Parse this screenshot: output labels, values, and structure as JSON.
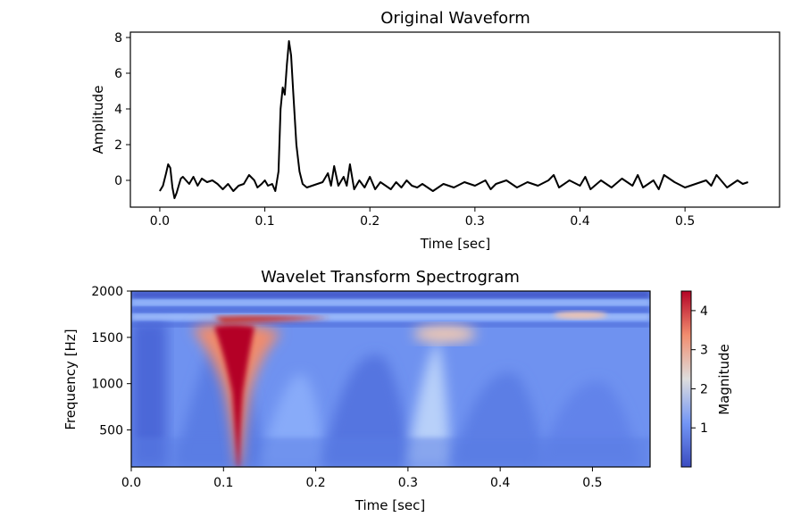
{
  "chart_data": [
    {
      "type": "line",
      "title": "Original Waveform",
      "xlabel": "Time [sec]",
      "ylabel": "Amplitude",
      "xlim": [
        -0.028,
        0.59
      ],
      "ylim": [
        -1.5,
        8.3
      ],
      "xticks": [
        0.0,
        0.1,
        0.2,
        0.3,
        0.4,
        0.5
      ],
      "xtick_labels": [
        "0.0",
        "0.1",
        "0.2",
        "0.3",
        "0.4",
        "0.5"
      ],
      "yticks": [
        0,
        2,
        4,
        6,
        8
      ],
      "ytick_labels": [
        "0",
        "2",
        "4",
        "6",
        "8"
      ],
      "grid": false,
      "line_color": "#000000",
      "series": [
        {
          "x": [
            0.0,
            0.003,
            0.006,
            0.008,
            0.01,
            0.012,
            0.014,
            0.016,
            0.018,
            0.02,
            0.022,
            0.025,
            0.028,
            0.032,
            0.036,
            0.04,
            0.045,
            0.05,
            0.055,
            0.06,
            0.065,
            0.07,
            0.075,
            0.08,
            0.085,
            0.09,
            0.093,
            0.097,
            0.1,
            0.103,
            0.107,
            0.11,
            0.113,
            0.115,
            0.117,
            0.119,
            0.121,
            0.123,
            0.125,
            0.127,
            0.13,
            0.133,
            0.136,
            0.14,
            0.145,
            0.15,
            0.155,
            0.16,
            0.163,
            0.166,
            0.17,
            0.175,
            0.178,
            0.181,
            0.185,
            0.19,
            0.195,
            0.2,
            0.205,
            0.21,
            0.215,
            0.22,
            0.225,
            0.23,
            0.235,
            0.24,
            0.245,
            0.25,
            0.26,
            0.27,
            0.28,
            0.29,
            0.3,
            0.31,
            0.315,
            0.32,
            0.33,
            0.34,
            0.35,
            0.36,
            0.37,
            0.375,
            0.38,
            0.39,
            0.4,
            0.405,
            0.41,
            0.42,
            0.43,
            0.44,
            0.45,
            0.455,
            0.46,
            0.47,
            0.475,
            0.48,
            0.49,
            0.5,
            0.51,
            0.52,
            0.525,
            0.53,
            0.54,
            0.55,
            0.555,
            0.56
          ],
          "y": [
            -0.6,
            -0.3,
            0.4,
            0.9,
            0.7,
            -0.4,
            -1.0,
            -0.7,
            -0.3,
            0.1,
            0.2,
            0.0,
            -0.2,
            0.2,
            -0.3,
            0.1,
            -0.1,
            0.0,
            -0.2,
            -0.5,
            -0.2,
            -0.6,
            -0.3,
            -0.2,
            0.3,
            0.0,
            -0.4,
            -0.2,
            0.0,
            -0.3,
            -0.2,
            -0.6,
            0.5,
            4.0,
            5.2,
            4.8,
            6.5,
            7.8,
            7.0,
            5.0,
            2.0,
            0.5,
            -0.2,
            -0.4,
            -0.3,
            -0.2,
            -0.1,
            0.4,
            -0.3,
            0.8,
            -0.3,
            0.2,
            -0.3,
            0.9,
            -0.5,
            0.0,
            -0.4,
            0.2,
            -0.5,
            -0.1,
            -0.3,
            -0.5,
            -0.1,
            -0.4,
            0.0,
            -0.3,
            -0.4,
            -0.2,
            -0.6,
            -0.2,
            -0.4,
            -0.1,
            -0.3,
            0.0,
            -0.5,
            -0.2,
            0.0,
            -0.4,
            -0.1,
            -0.3,
            0.0,
            0.3,
            -0.4,
            0.0,
            -0.3,
            0.2,
            -0.5,
            0.0,
            -0.4,
            0.1,
            -0.3,
            0.3,
            -0.4,
            0.0,
            -0.5,
            0.3,
            -0.1,
            -0.4,
            -0.2,
            0.0,
            -0.3,
            0.3,
            -0.4,
            0.0,
            -0.2,
            -0.1
          ]
        }
      ]
    },
    {
      "type": "heatmap",
      "title": "Wavelet Transform Spectrogram",
      "xlabel": "Time [sec]",
      "ylabel": "Frequency [Hz]",
      "xlim": [
        0.0,
        0.5625
      ],
      "ylim": [
        100,
        2000
      ],
      "xticks": [
        0.0,
        0.1,
        0.2,
        0.3,
        0.4,
        0.5
      ],
      "xtick_labels": [
        "0.0",
        "0.1",
        "0.2",
        "0.3",
        "0.4",
        "0.5"
      ],
      "yticks": [
        500,
        1000,
        1500,
        2000
      ],
      "ytick_labels": [
        "500",
        "1000",
        "1500",
        "2000"
      ],
      "colormap": "coolwarm",
      "colorbar": {
        "label": "Magnitude",
        "range": [
          0.0,
          4.5
        ],
        "ticks": [
          1,
          2,
          3,
          4
        ],
        "tick_labels": [
          "1",
          "2",
          "3",
          "4"
        ]
      },
      "features": [
        {
          "desc": "strong peak",
          "time": 0.12,
          "freq_range": [
            100,
            1650
          ],
          "magnitude": 4.5
        },
        {
          "desc": "band near 1700 Hz",
          "time_range": [
            0.1,
            0.22
          ],
          "freq": 1700,
          "magnitude": 4.0
        },
        {
          "desc": "moderate patch",
          "time": 0.33,
          "freq": 1550,
          "magnitude": 2.6
        },
        {
          "desc": "moderate patch",
          "time": 0.48,
          "freq": 1720,
          "magnitude": 2.5
        }
      ]
    }
  ]
}
